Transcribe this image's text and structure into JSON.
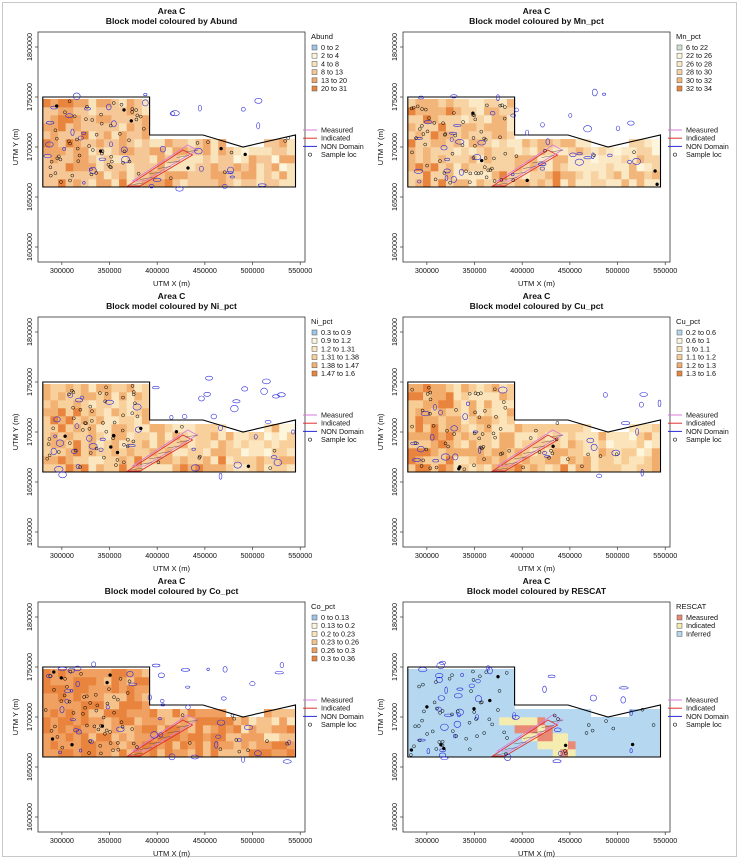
{
  "figure": {
    "area_label": "Area C",
    "xlabel": "UTM X (m)",
    "ylabel": "UTM Y (m)",
    "xlim": [
      275000,
      555000
    ],
    "ylim": [
      1585000,
      1815000
    ],
    "xticks": [
      300000,
      350000,
      400000,
      450000,
      500000,
      550000
    ],
    "xtick_labels": [
      "300000",
      "350000",
      "400000",
      "450000",
      "500000",
      "550000"
    ],
    "yticks": [
      1600000,
      1650000,
      1700000,
      1750000,
      1800000
    ],
    "ytick_labels": [
      "1600000",
      "1650000",
      "1700000",
      "1750000",
      "1800000"
    ],
    "overlay_legend": [
      {
        "label": "Measured",
        "color": "#d97ad9",
        "kind": "line"
      },
      {
        "label": "Indicated",
        "color": "#e03030",
        "kind": "line"
      },
      {
        "label": "NON Domain",
        "color": "#2b2bd9",
        "kind": "line"
      },
      {
        "label": "Sample loc",
        "color": "#000000",
        "kind": "circle"
      }
    ],
    "domain_outline_xy": [
      [
        280000,
        1660000
      ],
      [
        280000,
        1750000
      ],
      [
        392000,
        1750000
      ],
      [
        392000,
        1712000
      ],
      [
        448000,
        1712000
      ],
      [
        490000,
        1700000
      ],
      [
        545000,
        1712000
      ],
      [
        545000,
        1660000
      ]
    ]
  },
  "chart_data": [
    {
      "type": "heatmap",
      "title": "Area C",
      "subtitle": "Block model coloured by Abund",
      "legend_title": "Abund",
      "classes": [
        "0 to 2",
        "2 to 4",
        "4 to 8",
        "8 to 13",
        "13 to 20",
        "20 to 31"
      ],
      "colors": [
        "#9ec4e8",
        "#fdf6dc",
        "#f9e3bb",
        "#f5c796",
        "#f0a86a",
        "#e8843d"
      ],
      "base_class": 3,
      "seed": 11
    },
    {
      "type": "heatmap",
      "title": "Area C",
      "subtitle": "Block model coloured by Mn_pct",
      "legend_title": "Mn_pct",
      "classes": [
        "6 to 22",
        "22 to 26",
        "26 to 28",
        "28 to 30",
        "30 to 32",
        "32 to 34"
      ],
      "colors": [
        "#cfe3d4",
        "#fdf6dc",
        "#fbe9c6",
        "#f7d3a3",
        "#f2b67b",
        "#e8843d"
      ],
      "base_class": 3,
      "seed": 23
    },
    {
      "type": "heatmap",
      "title": "Area C",
      "subtitle": "Block model coloured by Ni_pct",
      "legend_title": "Ni_pct",
      "classes": [
        "0.3 to 0.9",
        "0.9 to 1.2",
        "1.2 to 1.31",
        "1.31 to 1.38",
        "1.38 to 1.47",
        "1.47 to 1.6"
      ],
      "colors": [
        "#9ec4e8",
        "#fdf6dc",
        "#fbe6bf",
        "#f7d09c",
        "#f2b274",
        "#e8843d"
      ],
      "base_class": 3,
      "seed": 37
    },
    {
      "type": "heatmap",
      "title": "Area C",
      "subtitle": "Block model coloured by Cu_pct",
      "legend_title": "Cu_pct",
      "classes": [
        "0.2 to 0.6",
        "0.6 to 1",
        "1 to 1.1",
        "1.1 to 1.2",
        "1.2 to 1.3",
        "1.3 to 1.6"
      ],
      "colors": [
        "#b7d6ec",
        "#fdf6dc",
        "#fbe4ba",
        "#f7cc95",
        "#f1ad6c",
        "#e8843d"
      ],
      "base_class": 3,
      "seed": 41
    },
    {
      "type": "heatmap",
      "title": "Area C",
      "subtitle": "Block model coloured by Co_pct",
      "legend_title": "Co_pct",
      "classes": [
        "0 to 0.13",
        "0.13 to 0.2",
        "0.2 to 0.23",
        "0.23 to 0.26",
        "0.26 to 0.3",
        "0.3 to 0.36"
      ],
      "colors": [
        "#9ec4e8",
        "#fdf6dc",
        "#fbe4ba",
        "#f5c28c",
        "#f0a060",
        "#e8843d"
      ],
      "base_class": 4,
      "seed": 53
    },
    {
      "type": "heatmap",
      "title": "Area C",
      "subtitle": "Block model coloured by RESCAT",
      "legend_title": "RESCAT",
      "classes": [
        "Measured",
        "Indicated",
        "Inferred"
      ],
      "colors": [
        "#e88a74",
        "#f5ecb0",
        "#b5d8f0"
      ],
      "base_class": 2,
      "seed": 67
    }
  ]
}
